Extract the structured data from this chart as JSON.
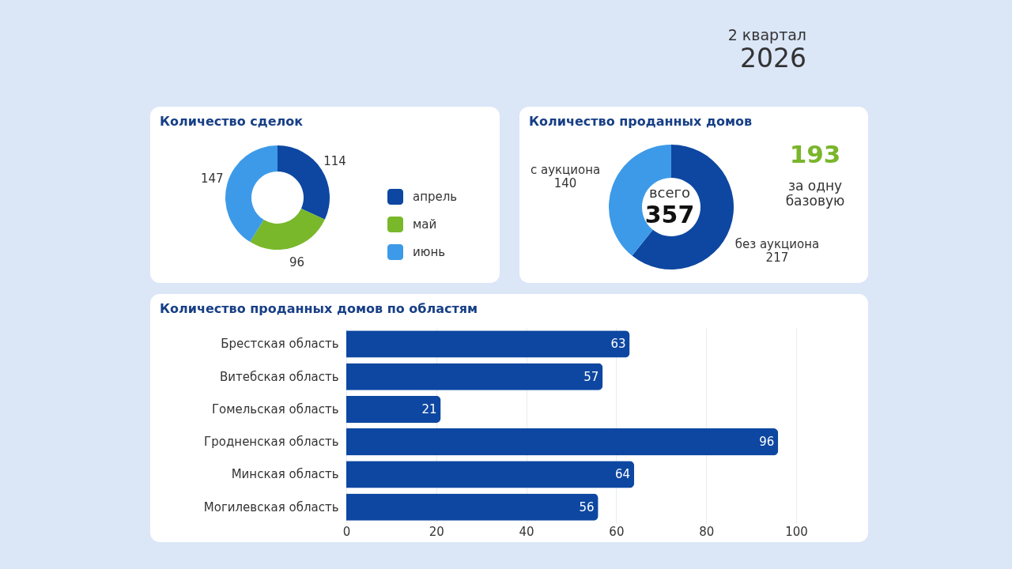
{
  "chart_data": [
    {
      "type": "other",
      "annotations": [
        "2 квартал",
        "2026"
      ]
    },
    {
      "type": "donut",
      "title": "Количество сделок",
      "categories": [
        "апрель",
        "май",
        "июнь"
      ],
      "values": [
        114,
        96,
        147
      ],
      "colors": [
        "#0d47a1",
        "#78b82a",
        "#3d9ae8"
      ],
      "legend": "right",
      "data_labels": true
    },
    {
      "type": "donut",
      "title": "Количество проданных домов",
      "categories": [
        "без аукциона",
        "с аукциона"
      ],
      "values": [
        217,
        140
      ],
      "colors": [
        "#0d47a1",
        "#3d9ae8"
      ],
      "data_labels": true,
      "annotations": [
        "всего",
        "357",
        "193",
        "за одну базовую"
      ]
    },
    {
      "type": "bar",
      "title": "Количество проданных домов по областям",
      "orientation": "horizontal",
      "categories": [
        "Брестская область",
        "Витебская область",
        "Гомельская область",
        "Гродненская область",
        "Минская область",
        "Могилевская область"
      ],
      "values": [
        63,
        57,
        21,
        96,
        64,
        56
      ],
      "color": "#0d47a1",
      "xlim": [
        0,
        100
      ],
      "xticks": [
        0,
        20,
        40,
        60,
        80,
        100
      ],
      "grid": "x",
      "data_labels": true
    }
  ]
}
